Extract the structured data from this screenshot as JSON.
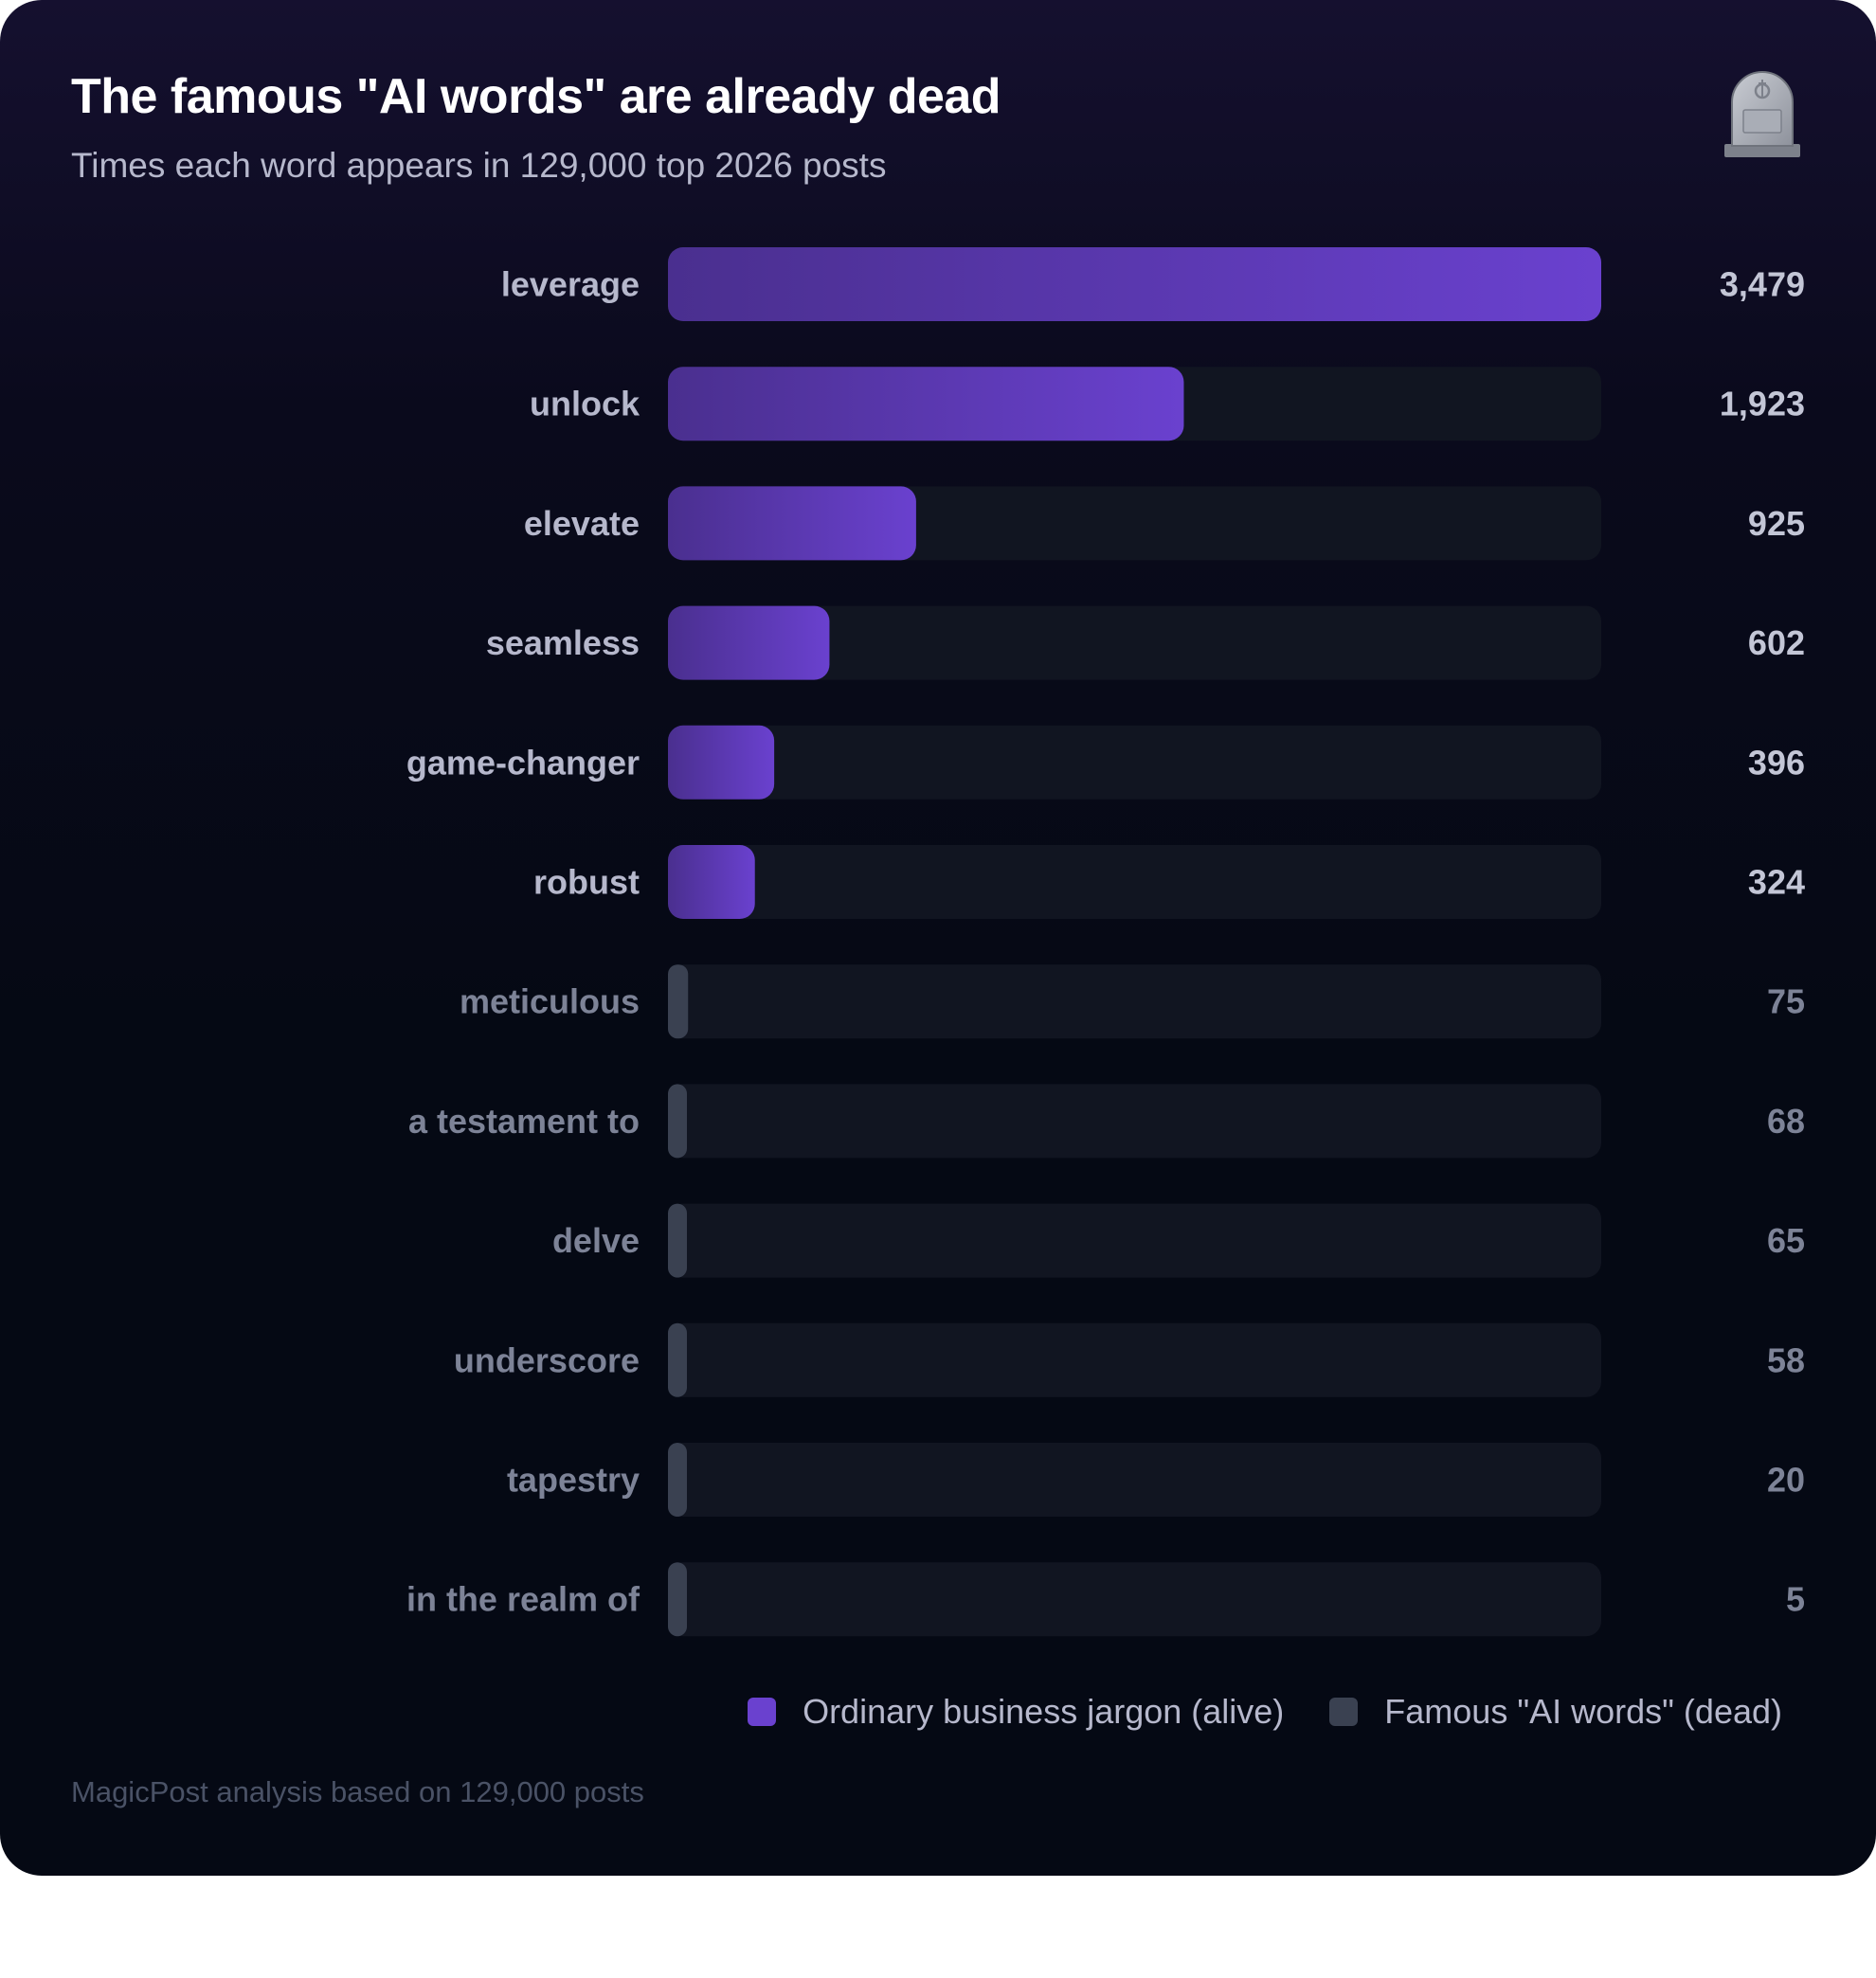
{
  "title": "The famous \"AI words\" are already dead",
  "subtitle": "Times each word appears in 129,000 top 2026 posts",
  "footnote": "MagicPost analysis based on 129,000 posts",
  "header_icon": "tombstone-icon",
  "legend": {
    "alive_label": "Ordinary business jargon (alive)",
    "dead_label": "Famous \"AI words\" (dead)"
  },
  "colors": {
    "alive_start": "#4a2f8f",
    "alive_end": "#6a41cf",
    "dead": "#3a4151",
    "track": "#111521",
    "alive_text": "#b6b8cc",
    "dead_text": "#7d8397",
    "value_alive": "#c3c6d6",
    "value_dead": "#7d8397"
  },
  "chart_data": {
    "type": "bar",
    "orientation": "horizontal",
    "title": "The famous \"AI words\" are already dead",
    "subtitle": "Times each word appears in 129,000 top 2026 posts",
    "xlim": [
      0,
      3479
    ],
    "legend_position": "bottom-right",
    "categories": [
      "leverage",
      "unlock",
      "elevate",
      "seamless",
      "game-changer",
      "robust",
      "meticulous",
      "a testament to",
      "delve",
      "underscore",
      "tapestry",
      "in the realm of"
    ],
    "values": [
      3479,
      1923,
      925,
      602,
      396,
      324,
      75,
      68,
      65,
      58,
      20,
      5
    ],
    "value_labels": [
      "3,479",
      "1,923",
      "925",
      "602",
      "396",
      "324",
      "75",
      "68",
      "65",
      "58",
      "20",
      "5"
    ],
    "groups": [
      "alive",
      "alive",
      "alive",
      "alive",
      "alive",
      "alive",
      "dead",
      "dead",
      "dead",
      "dead",
      "dead",
      "dead"
    ]
  }
}
